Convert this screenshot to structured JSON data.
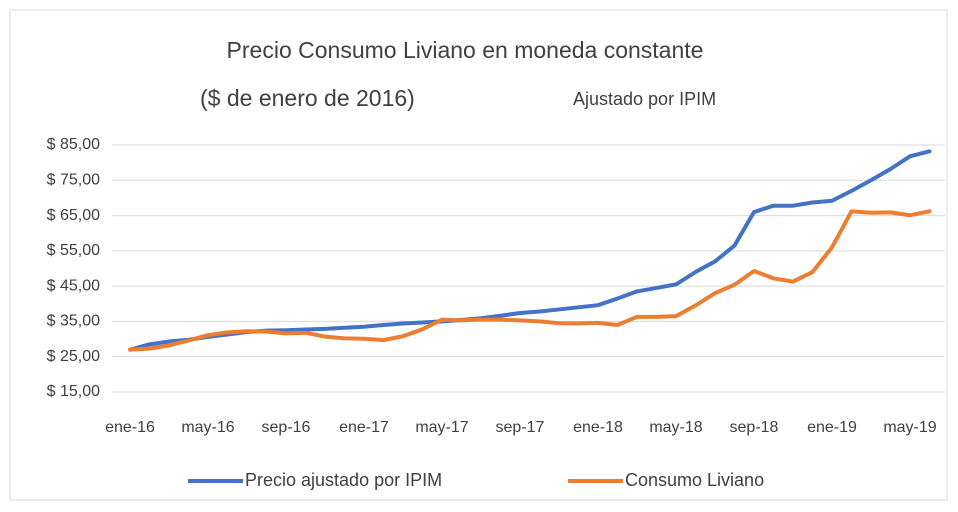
{
  "chart_data": {
    "type": "line",
    "title": "Precio Consumo Liviano en moneda constante",
    "subtitle": "($ de enero de 2016)",
    "annotation": "Ajustado por IPIM",
    "categories": [
      "ene-16",
      null,
      null,
      null,
      "may-16",
      null,
      null,
      null,
      "sep-16",
      null,
      null,
      null,
      "ene-17",
      null,
      null,
      null,
      "may-17",
      null,
      null,
      null,
      "sep-17",
      null,
      null,
      null,
      "ene-18",
      null,
      null,
      null,
      "may-18",
      null,
      null,
      null,
      "sep-18",
      null,
      null,
      null,
      "ene-19",
      null,
      null,
      null,
      "may-19",
      null
    ],
    "series": [
      {
        "name": "Precio ajustado por IPIM",
        "color": "#4472c4",
        "values": [
          27,
          28.5,
          29.3,
          29.8,
          30.6,
          31.3,
          32,
          32.4,
          32.5,
          32.7,
          32.9,
          33.2,
          33.5,
          34,
          34.4,
          34.7,
          35,
          35.4,
          35.9,
          36.6,
          37.4,
          37.8,
          38.4,
          39,
          39.6,
          41.5,
          43.5,
          44.5,
          45.5,
          49,
          52,
          56.5,
          66,
          67.8,
          67.8,
          68.7,
          69.2,
          72,
          75,
          78.2,
          81.8,
          83.2
        ]
      },
      {
        "name": "Consumo Liviano",
        "color": "#ed7d31",
        "values": [
          27,
          27.3,
          28.2,
          29.6,
          31.1,
          31.9,
          32.2,
          32.1,
          31.6,
          31.8,
          30.7,
          30.2,
          30.1,
          29.7,
          30.8,
          32.8,
          35.5,
          35.3,
          35.5,
          35.5,
          35.3,
          35,
          34.5,
          34.4,
          34.6,
          34,
          36.3,
          36.3,
          36.5,
          39.5,
          43,
          45.4,
          49.3,
          47.2,
          46.3,
          49,
          56,
          66.2,
          65.8,
          65.9,
          65.1,
          66.2
        ]
      }
    ],
    "ylim": [
      15,
      85
    ],
    "yticks": [
      {
        "value": 15,
        "label": "$ 15,00"
      },
      {
        "value": 25,
        "label": "$ 25,00"
      },
      {
        "value": 35,
        "label": "$ 35,00"
      },
      {
        "value": 45,
        "label": "$ 45,00"
      },
      {
        "value": 55,
        "label": "$ 55,00"
      },
      {
        "value": 65,
        "label": "$ 65,00"
      },
      {
        "value": 75,
        "label": "$ 75,00"
      },
      {
        "value": 85,
        "label": "$ 85,00"
      }
    ],
    "grid": true,
    "legend": "bottom"
  }
}
